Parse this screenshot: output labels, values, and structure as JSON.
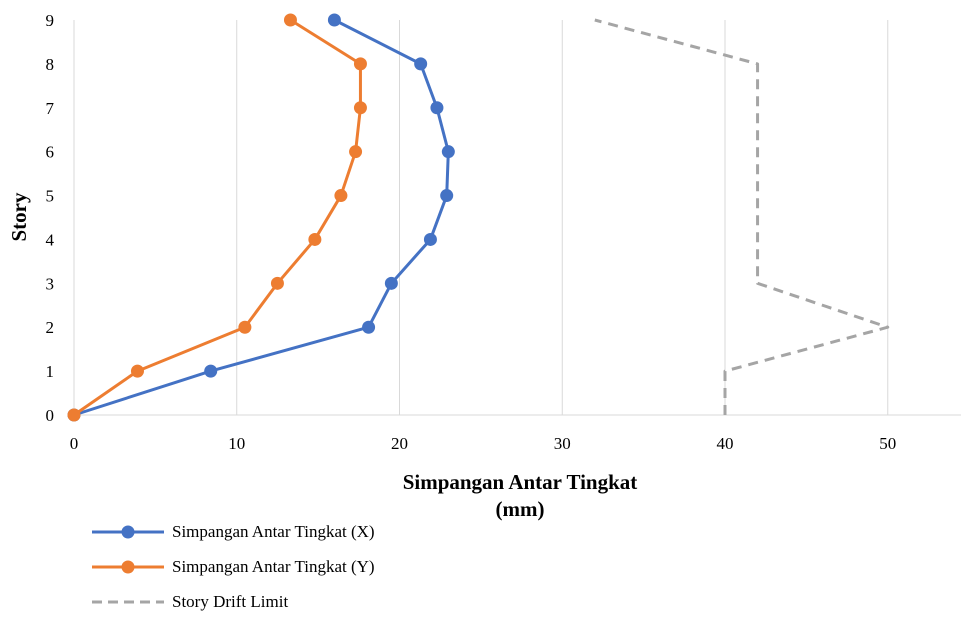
{
  "chart_data": {
    "type": "line",
    "title": "",
    "xlabel": "Simpangan Antar Tingkat (mm)",
    "ylabel": "Story",
    "xlim": [
      0,
      54.5
    ],
    "ylim": [
      0,
      9
    ],
    "x_ticks": [
      0,
      10,
      20,
      30,
      40,
      50
    ],
    "y_ticks": [
      0,
      1,
      2,
      3,
      4,
      5,
      6,
      7,
      8,
      9
    ],
    "grid": "vertical",
    "legend_position": "bottom-left",
    "series": [
      {
        "name": "Simpangan Antar Tingkat (X)",
        "color": "#4472C4",
        "style": "solid",
        "markers": true,
        "points": [
          [
            0,
            0
          ],
          [
            8.4,
            1
          ],
          [
            18.1,
            2
          ],
          [
            19.5,
            3
          ],
          [
            21.9,
            4
          ],
          [
            22.9,
            5
          ],
          [
            23.0,
            6
          ],
          [
            22.3,
            7
          ],
          [
            21.3,
            8
          ],
          [
            16.0,
            9
          ]
        ]
      },
      {
        "name": "Simpangan Antar Tingkat (Y)",
        "color": "#ED7D31",
        "style": "solid",
        "markers": true,
        "points": [
          [
            0,
            0
          ],
          [
            3.9,
            1
          ],
          [
            10.5,
            2
          ],
          [
            12.5,
            3
          ],
          [
            14.8,
            4
          ],
          [
            16.4,
            5
          ],
          [
            17.3,
            6
          ],
          [
            17.6,
            7
          ],
          [
            17.6,
            8
          ],
          [
            13.3,
            9
          ]
        ]
      },
      {
        "name": "Story Drift Limit",
        "color": "#A5A5A5",
        "style": "dashed",
        "markers": false,
        "points": [
          [
            40,
            0
          ],
          [
            40,
            1
          ],
          [
            50,
            2
          ],
          [
            42,
            3
          ],
          [
            42,
            4
          ],
          [
            42,
            5
          ],
          [
            42,
            6
          ],
          [
            42,
            7
          ],
          [
            42,
            8
          ],
          [
            32,
            9
          ]
        ]
      }
    ]
  }
}
